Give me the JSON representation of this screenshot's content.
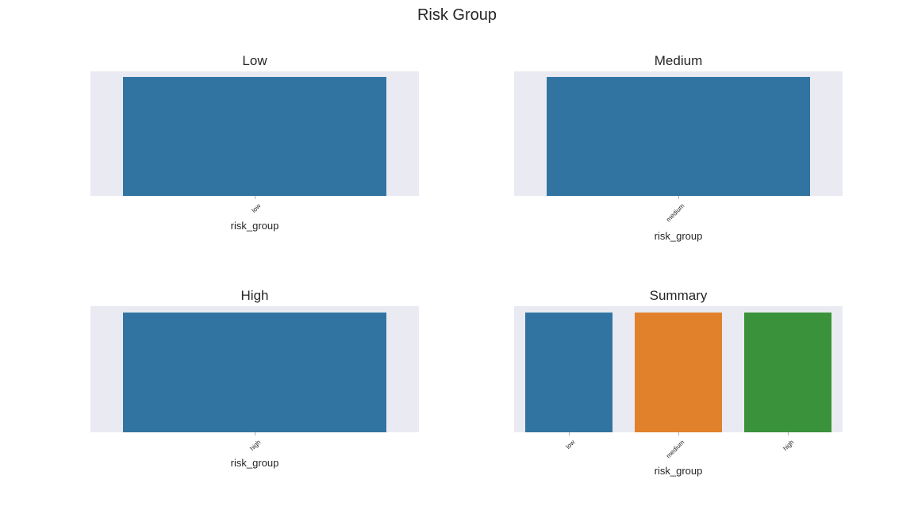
{
  "figure": {
    "title": "Risk Group"
  },
  "colors": {
    "background": "#eaeaf2",
    "bar_blue": "#3274a1",
    "bar_orange": "#e1812c",
    "bar_green": "#3a923a"
  },
  "chart_data": [
    {
      "type": "bar",
      "title": "Low",
      "xlabel": "risk_group",
      "ylabel": "",
      "categories": [
        "low"
      ],
      "values": [
        1
      ],
      "colors": [
        "#3274a1"
      ],
      "ylim": [
        0,
        1.05
      ],
      "grid": false
    },
    {
      "type": "bar",
      "title": "Medium",
      "xlabel": "risk_group",
      "ylabel": "",
      "categories": [
        "medium"
      ],
      "values": [
        1
      ],
      "colors": [
        "#3274a1"
      ],
      "ylim": [
        0,
        1.05
      ],
      "grid": false
    },
    {
      "type": "bar",
      "title": "High",
      "xlabel": "risk_group",
      "ylabel": "",
      "categories": [
        "high"
      ],
      "values": [
        1
      ],
      "colors": [
        "#3274a1"
      ],
      "ylim": [
        0,
        1.05
      ],
      "grid": false
    },
    {
      "type": "bar",
      "title": "Summary",
      "xlabel": "risk_group",
      "ylabel": "",
      "categories": [
        "low",
        "medium",
        "high"
      ],
      "values": [
        1,
        1,
        1
      ],
      "colors": [
        "#3274a1",
        "#e1812c",
        "#3a923a"
      ],
      "ylim": [
        0,
        1.05
      ],
      "grid": false
    }
  ]
}
